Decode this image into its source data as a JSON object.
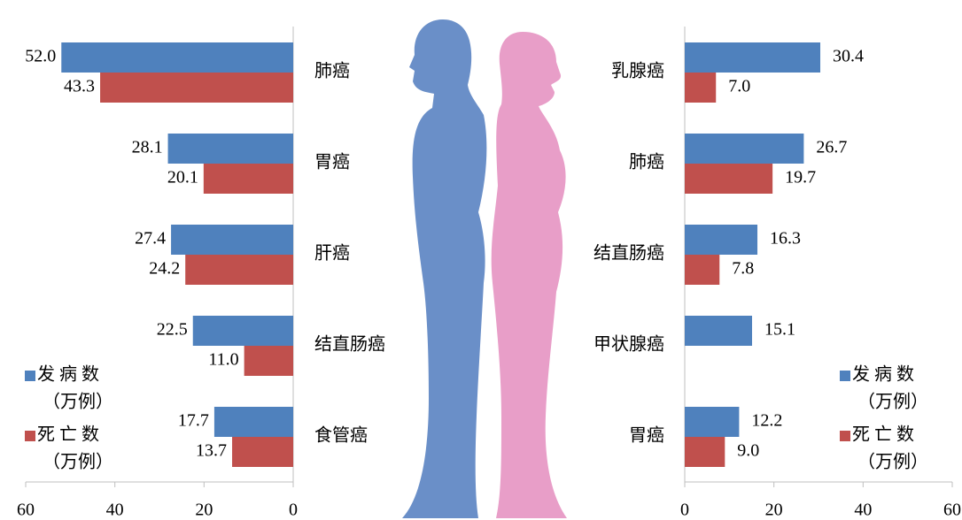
{
  "chart_data": [
    {
      "type": "hbar",
      "xlim": [
        60,
        0
      ],
      "xticks": [
        0,
        20,
        40,
        60
      ],
      "unit": "（万例）",
      "categories": [
        "肺癌",
        "胃癌",
        "肝癌",
        "结直肠癌",
        "食管癌"
      ],
      "series": [
        {
          "name": "发 病 数",
          "color": "#4f81bd",
          "values": [
            52.0,
            28.1,
            27.4,
            22.5,
            17.7
          ],
          "value_labels": [
            "52.0",
            "28.1",
            "27.4",
            "22.5",
            "17.7"
          ]
        },
        {
          "name": "死 亡 数",
          "color": "#c0504d",
          "values": [
            43.3,
            20.1,
            24.2,
            11.0,
            13.7
          ],
          "value_labels": [
            "43.3",
            "20.1",
            "24.2",
            "11.0",
            "13.7"
          ]
        }
      ]
    },
    {
      "type": "hbar",
      "xlim": [
        0,
        60
      ],
      "xticks": [
        0,
        20,
        40,
        60
      ],
      "unit": "（万例）",
      "categories": [
        "乳腺癌",
        "肺癌",
        "结直肠癌",
        "甲状腺癌",
        "胃癌"
      ],
      "series": [
        {
          "name": "发 病 数",
          "color": "#4f81bd",
          "values": [
            30.4,
            26.7,
            16.3,
            15.1,
            12.2
          ],
          "value_labels": [
            "30.4",
            "26.7",
            "16.3",
            "15.1",
            "12.2"
          ]
        },
        {
          "name": "死 亡 数",
          "color": "#c0504d",
          "values": [
            7.0,
            19.7,
            7.8,
            null,
            9.0
          ],
          "value_labels": [
            "7.0",
            "19.7",
            "7.8",
            null,
            "9.0"
          ]
        }
      ]
    }
  ]
}
